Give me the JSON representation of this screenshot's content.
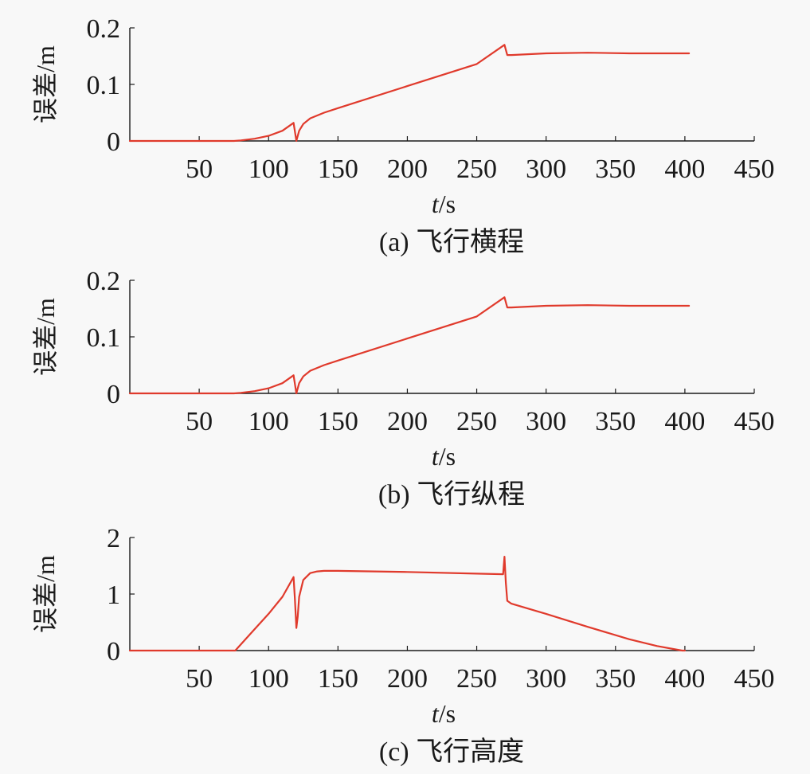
{
  "chart_data": [
    {
      "type": "line",
      "caption": "(a) 飞行横程",
      "ylabel": "误差/m",
      "xlabel_italic": "t",
      "xlabel_unit": "/s",
      "xlim": [
        0,
        450
      ],
      "ylim": [
        0,
        0.2
      ],
      "xticks": [
        "50",
        "100",
        "150",
        "200",
        "250",
        "300",
        "350",
        "400",
        "450"
      ],
      "yticks": [
        "0",
        "0.1",
        "0.2"
      ],
      "line_color": "#e03a2c",
      "series": [
        {
          "x": [
            0,
            75,
            80,
            90,
            100,
            110,
            118,
            120,
            122,
            125,
            130,
            140,
            150,
            200,
            250,
            270,
            272,
            275,
            300,
            330,
            360,
            403
          ],
          "y": [
            0,
            0,
            0.001,
            0.004,
            0.009,
            0.018,
            0.032,
            0.0,
            0.018,
            0.03,
            0.04,
            0.05,
            0.058,
            0.097,
            0.136,
            0.17,
            0.152,
            0.152,
            0.155,
            0.156,
            0.155,
            0.155
          ]
        }
      ]
    },
    {
      "type": "line",
      "caption": "(b) 飞行纵程",
      "ylabel": "误差/m",
      "xlabel_italic": "t",
      "xlabel_unit": "/s",
      "xlim": [
        0,
        450
      ],
      "ylim": [
        0,
        0.2
      ],
      "xticks": [
        "50",
        "100",
        "150",
        "200",
        "250",
        "300",
        "350",
        "400",
        "450"
      ],
      "yticks": [
        "0",
        "0.1",
        "0.2"
      ],
      "line_color": "#e03a2c",
      "series": [
        {
          "x": [
            0,
            75,
            80,
            90,
            100,
            110,
            118,
            120,
            122,
            125,
            130,
            140,
            150,
            200,
            250,
            270,
            272,
            275,
            300,
            330,
            360,
            403
          ],
          "y": [
            0,
            0,
            0.001,
            0.004,
            0.009,
            0.018,
            0.032,
            0.0,
            0.018,
            0.03,
            0.04,
            0.05,
            0.058,
            0.097,
            0.136,
            0.17,
            0.152,
            0.152,
            0.155,
            0.156,
            0.155,
            0.155
          ]
        }
      ]
    },
    {
      "type": "line",
      "caption": "(c) 飞行高度",
      "ylabel": "误差/m",
      "xlabel_italic": "t",
      "xlabel_unit": "/s",
      "xlim": [
        0,
        450
      ],
      "ylim": [
        0,
        2
      ],
      "xticks": [
        "50",
        "100",
        "150",
        "200",
        "250",
        "300",
        "350",
        "400",
        "450"
      ],
      "yticks": [
        "0",
        "1",
        "2"
      ],
      "line_color": "#e03a2c",
      "series": [
        {
          "x": [
            0,
            76,
            90,
            100,
            110,
            118,
            119,
            120,
            121,
            122,
            125,
            130,
            135,
            140,
            150,
            200,
            250,
            269,
            269.5,
            270,
            271,
            272,
            275,
            300,
            330,
            360,
            380,
            398,
            400
          ],
          "y": [
            0,
            0,
            0.38,
            0.65,
            0.95,
            1.3,
            0.9,
            0.4,
            0.6,
            0.95,
            1.25,
            1.37,
            1.4,
            1.41,
            1.41,
            1.39,
            1.36,
            1.35,
            1.5,
            1.66,
            1.2,
            0.88,
            0.83,
            0.65,
            0.42,
            0.2,
            0.08,
            0.0,
            0.0
          ]
        }
      ]
    }
  ]
}
